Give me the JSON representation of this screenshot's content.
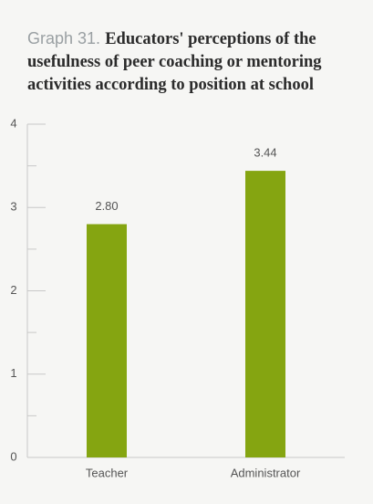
{
  "chart_data": {
    "type": "bar",
    "title_prefix": "Graph 31.",
    "title": "Educators' perceptions of the usefulness of peer coaching or mentoring activities according to position at school",
    "categories": [
      "Teacher",
      "Administrator"
    ],
    "values": [
      2.8,
      3.44
    ],
    "value_labels": [
      "2.80",
      "3.44"
    ],
    "color": "#85a511",
    "ylim": [
      0,
      4
    ],
    "yticks": [
      0,
      1,
      2,
      3,
      4
    ],
    "minor_yticks": [
      0.5,
      1.5,
      2.5,
      3.5
    ],
    "grid": false
  }
}
